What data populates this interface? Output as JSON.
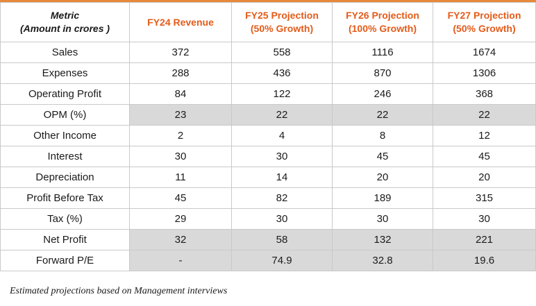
{
  "header": {
    "metric_line1": "Metric",
    "metric_line2": "(Amount in crores )",
    "columns": [
      {
        "line1": "FY24 Revenue",
        "line2": ""
      },
      {
        "line1": "FY25 Projection",
        "line2": "(50% Growth)"
      },
      {
        "line1": "FY26 Projection",
        "line2": "(100% Growth)"
      },
      {
        "line1": "FY27 Projection",
        "line2": "(50% Growth)"
      }
    ]
  },
  "rows": [
    {
      "metric": "Sales",
      "values": [
        "372",
        "558",
        "1116",
        "1674"
      ],
      "shaded": false
    },
    {
      "metric": "Expenses",
      "values": [
        "288",
        "436",
        "870",
        "1306"
      ],
      "shaded": false
    },
    {
      "metric": "Operating Profit",
      "values": [
        "84",
        "122",
        "246",
        "368"
      ],
      "shaded": false
    },
    {
      "metric": "OPM (%)",
      "values": [
        "23",
        "22",
        "22",
        "22"
      ],
      "shaded": true
    },
    {
      "metric": "Other Income",
      "values": [
        "2",
        "4",
        "8",
        "12"
      ],
      "shaded": false
    },
    {
      "metric": "Interest",
      "values": [
        "30",
        "30",
        "45",
        "45"
      ],
      "shaded": false
    },
    {
      "metric": "Depreciation",
      "values": [
        "11",
        "14",
        "20",
        "20"
      ],
      "shaded": false
    },
    {
      "metric": "Profit Before Tax",
      "values": [
        "45",
        "82",
        "189",
        "315"
      ],
      "shaded": false
    },
    {
      "metric": "Tax (%)",
      "values": [
        "29",
        "30",
        "30",
        "30"
      ],
      "shaded": false
    },
    {
      "metric": "Net Profit",
      "values": [
        "32",
        "58",
        "132",
        "221"
      ],
      "shaded": true
    },
    {
      "metric": "Forward P/E",
      "values": [
        "-",
        "74.9",
        "32.8",
        "19.6"
      ],
      "shaded": true
    }
  ],
  "footnote": "Estimated projections based on Management interviews",
  "colors": {
    "accent": "#e35b1a",
    "top_rule": "#e8883a",
    "shade": "#d9d9d9"
  }
}
